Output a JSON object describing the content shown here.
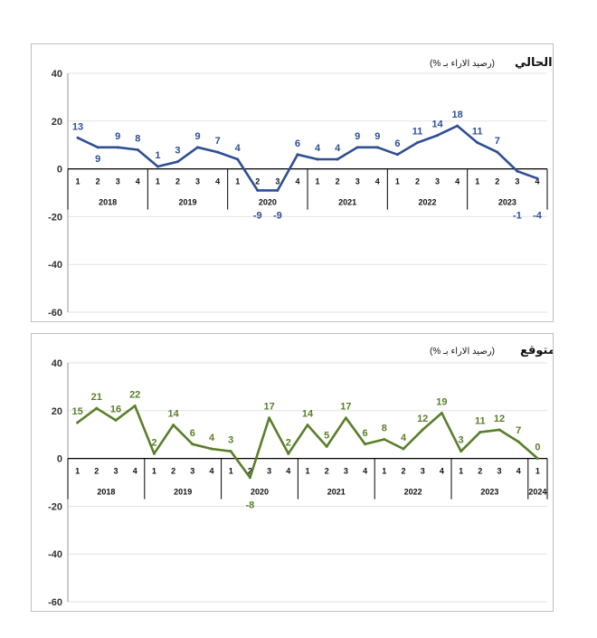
{
  "chart_data": [
    {
      "type": "line",
      "title": "المؤشر الحالي",
      "subtitle": "(رصيد الاراء بـ %)",
      "color": "#2f4f94",
      "ylim": [
        -60,
        40
      ],
      "yticks": [
        40,
        20,
        0,
        -20,
        -40,
        -60
      ],
      "years": [
        "2018",
        "2019",
        "2020",
        "2021",
        "2022",
        "2023"
      ],
      "year_sizes": [
        4,
        4,
        4,
        4,
        4,
        4
      ],
      "x": [
        "1",
        "2",
        "3",
        "4",
        "1",
        "2",
        "3",
        "4",
        "1",
        "2",
        "3",
        "4",
        "1",
        "2",
        "3",
        "4",
        "1",
        "2",
        "3",
        "4",
        "1",
        "2",
        "3",
        "4"
      ],
      "values": [
        13,
        9,
        9,
        8,
        1,
        3,
        9,
        7,
        4,
        -9,
        -9,
        6,
        4,
        4,
        9,
        9,
        6,
        11,
        14,
        18,
        11,
        7,
        -1,
        -4
      ],
      "data_labels": [
        "13",
        "9",
        "9",
        "8",
        "1",
        "3",
        "9",
        "7",
        "4",
        "-9",
        "-9",
        "6",
        "4",
        "4",
        "9",
        "9",
        "6",
        "11",
        "14",
        "18",
        "11",
        "7",
        "-1",
        "-4"
      ]
    },
    {
      "type": "line",
      "title": "المؤشر المتوقع",
      "subtitle": "(رصيد الاراء بـ %)",
      "color": "#5a7f2a",
      "ylim": [
        -60,
        40
      ],
      "yticks": [
        40,
        20,
        0,
        -20,
        -40,
        -60
      ],
      "years": [
        "2018",
        "2019",
        "2020",
        "2021",
        "2022",
        "2023",
        "2024"
      ],
      "year_sizes": [
        4,
        4,
        4,
        4,
        4,
        4,
        1
      ],
      "x": [
        "1",
        "2",
        "3",
        "4",
        "1",
        "2",
        "3",
        "4",
        "1",
        "2",
        "3",
        "4",
        "1",
        "2",
        "3",
        "4",
        "1",
        "2",
        "3",
        "4",
        "1",
        "2",
        "3",
        "4",
        "1"
      ],
      "values": [
        15,
        21,
        16,
        22,
        2,
        14,
        6,
        4,
        3,
        -8,
        17,
        2,
        14,
        5,
        17,
        6,
        8,
        4,
        12,
        19,
        3,
        11,
        12,
        7,
        0
      ],
      "data_labels": [
        "15",
        "21",
        "16",
        "22",
        "2",
        "14",
        "6",
        "4",
        "3",
        "-8",
        "17",
        "2",
        "14",
        "5",
        "17",
        "6",
        "8",
        "4",
        "12",
        "19",
        "3",
        "11",
        "12",
        "7",
        "0"
      ]
    }
  ]
}
